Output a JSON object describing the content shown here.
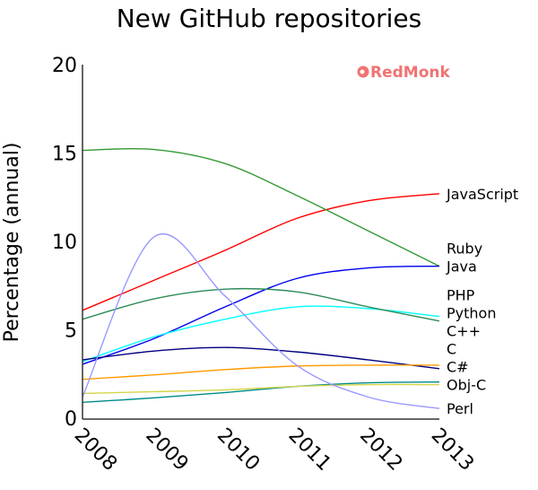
{
  "chart_data": {
    "type": "line",
    "title": "New GitHub repositories",
    "xlabel": "",
    "ylabel": "Percentage (annual)",
    "x": [
      2008,
      2009,
      2010,
      2011,
      2012,
      2013
    ],
    "x_tick_labels": [
      "2008",
      "2009",
      "2010",
      "2011",
      "2012",
      "2013"
    ],
    "xlim": [
      2008,
      2013
    ],
    "ylim": [
      0,
      20
    ],
    "y_ticks": [
      0,
      5,
      10,
      15,
      20
    ],
    "y_tick_labels": [
      "0",
      "5",
      "10",
      "15",
      "20"
    ],
    "grid": false,
    "legend": "inline labels at right end of lines",
    "watermark": "RedMonk",
    "series": [
      {
        "name": "JavaScript",
        "color": "#ff0000",
        "values": [
          6.1,
          7.8,
          9.5,
          11.3,
          12.3,
          12.7
        ]
      },
      {
        "name": "Ruby",
        "color": "#339933",
        "values": [
          15.15,
          15.2,
          14.4,
          12.6,
          10.6,
          8.6
        ]
      },
      {
        "name": "Java",
        "color": "#0000ee",
        "values": [
          3.05,
          4.5,
          6.3,
          7.9,
          8.5,
          8.6
        ]
      },
      {
        "name": "PHP",
        "color": "#00ffff",
        "values": [
          3.2,
          4.6,
          5.6,
          6.3,
          6.2,
          5.75
        ]
      },
      {
        "name": "Python",
        "color": "#2e8b57",
        "values": [
          5.6,
          6.75,
          7.3,
          7.15,
          6.3,
          5.5
        ]
      },
      {
        "name": "C",
        "color": "#000080",
        "values": [
          3.3,
          3.8,
          4.0,
          3.75,
          3.3,
          2.8
        ]
      },
      {
        "name": "C++",
        "color": "#ff9900",
        "values": [
          2.2,
          2.45,
          2.75,
          2.95,
          3.0,
          3.0
        ]
      },
      {
        "name": "C#",
        "color": "#008b8b",
        "values": [
          0.9,
          1.15,
          1.45,
          1.8,
          2.0,
          2.05
        ]
      },
      {
        "name": "Obj-C",
        "color": "#d4d44a",
        "values": [
          1.4,
          1.5,
          1.6,
          1.8,
          1.9,
          1.9
        ]
      },
      {
        "name": "Perl",
        "color": "#9999ff",
        "values": [
          1.2,
          10.25,
          6.9,
          3.0,
          1.2,
          0.55
        ]
      }
    ]
  }
}
